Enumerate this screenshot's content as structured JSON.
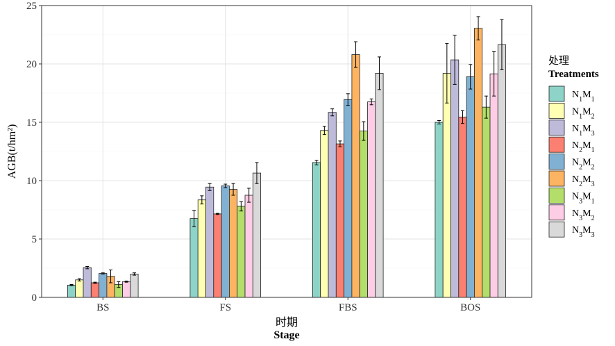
{
  "chart_data": {
    "type": "bar",
    "xlabel_cn": "时期",
    "xlabel_en": "Stage",
    "ylabel": "AGB(t/hm²)",
    "ylim": [
      0,
      25
    ],
    "yticks": [
      0,
      5,
      10,
      15,
      20,
      25
    ],
    "grid": true,
    "legend_position": "right",
    "legend_title_cn": "处理",
    "legend_title_en": "Treatments",
    "categories": [
      "BS",
      "FS",
      "FBS",
      "BOS"
    ],
    "series": [
      {
        "name": "N1M1",
        "base": "N",
        "sub1": "1",
        "mid": "M",
        "sub2": "1",
        "color": "#8dd3c7",
        "values": [
          1.05,
          6.75,
          11.55,
          15.0
        ],
        "errors": [
          0.05,
          0.7,
          0.2,
          0.15
        ]
      },
      {
        "name": "N1M2",
        "base": "N",
        "sub1": "1",
        "mid": "M",
        "sub2": "2",
        "color": "#ffffb3",
        "values": [
          1.5,
          8.35,
          14.3,
          19.2
        ],
        "errors": [
          0.1,
          0.35,
          0.35,
          2.55
        ]
      },
      {
        "name": "N1M3",
        "base": "N",
        "sub1": "1",
        "mid": "M",
        "sub2": "3",
        "color": "#bebada",
        "values": [
          2.55,
          9.45,
          15.85,
          20.35
        ],
        "errors": [
          0.1,
          0.3,
          0.3,
          2.1
        ]
      },
      {
        "name": "N2M1",
        "base": "N",
        "sub1": "2",
        "mid": "M",
        "sub2": "1",
        "color": "#fb8072",
        "values": [
          1.25,
          7.15,
          13.15,
          15.45
        ],
        "errors": [
          0.05,
          0.05,
          0.25,
          0.55
        ]
      },
      {
        "name": "N2M2",
        "base": "N",
        "sub1": "2",
        "mid": "M",
        "sub2": "2",
        "color": "#80b1d3",
        "values": [
          2.05,
          9.55,
          16.95,
          18.9
        ],
        "errors": [
          0.05,
          0.15,
          0.5,
          1.05
        ]
      },
      {
        "name": "N2M3",
        "base": "N",
        "sub1": "2",
        "mid": "M",
        "sub2": "3",
        "color": "#fdb462",
        "values": [
          1.8,
          9.25,
          20.8,
          23.05
        ],
        "errors": [
          0.55,
          0.5,
          1.1,
          1.0
        ]
      },
      {
        "name": "N3M1",
        "base": "N",
        "sub1": "3",
        "mid": "M",
        "sub2": "1",
        "color": "#b3de69",
        "values": [
          1.1,
          7.8,
          14.25,
          16.3
        ],
        "errors": [
          0.25,
          0.4,
          0.8,
          0.95
        ]
      },
      {
        "name": "N3M2",
        "base": "N",
        "sub1": "3",
        "mid": "M",
        "sub2": "2",
        "color": "#fccde5",
        "values": [
          1.35,
          8.75,
          16.75,
          19.15
        ],
        "errors": [
          0.05,
          0.6,
          0.25,
          1.9
        ]
      },
      {
        "name": "N3M3",
        "base": "N",
        "sub1": "3",
        "mid": "M",
        "sub2": "3",
        "color": "#d9d9d9",
        "values": [
          2.0,
          10.65,
          19.2,
          21.65
        ],
        "errors": [
          0.1,
          0.9,
          1.4,
          2.15
        ]
      }
    ]
  }
}
